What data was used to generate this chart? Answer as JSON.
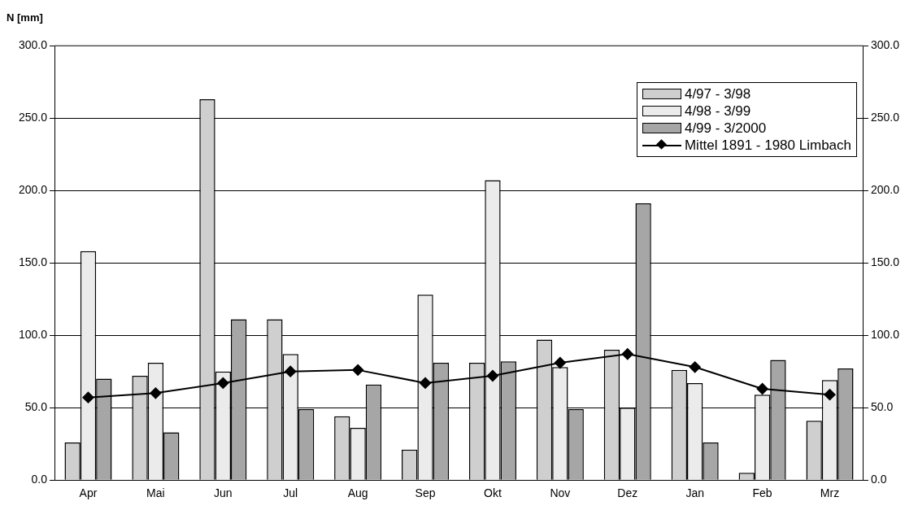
{
  "chart_data": {
    "type": "bar",
    "ylabel": "N [mm]",
    "categories": [
      "Apr",
      "Mai",
      "Jun",
      "Jul",
      "Aug",
      "Sep",
      "Okt",
      "Nov",
      "Dez",
      "Jan",
      "Feb",
      "Mrz"
    ],
    "series": [
      {
        "name": "4/97 - 3/98",
        "color": "#cfcfcf",
        "values": [
          26,
          72,
          263,
          111,
          44,
          21,
          81,
          97,
          90,
          76,
          5,
          41
        ]
      },
      {
        "name": "4/98 - 3/99",
        "color": "#ebebeb",
        "values": [
          158,
          81,
          75,
          87,
          36,
          128,
          207,
          78,
          50,
          67,
          59,
          69
        ]
      },
      {
        "name": "4/99 - 3/2000",
        "color": "#a6a6a6",
        "values": [
          70,
          33,
          111,
          49,
          66,
          81,
          82,
          49,
          191,
          26,
          83,
          77
        ]
      },
      {
        "name": "Mittel 1891 - 1980 Limbach",
        "type": "line",
        "color": "#000000",
        "marker": "diamond",
        "line_style": "solid",
        "values": [
          57,
          60,
          67,
          75,
          76,
          67,
          72,
          81,
          87,
          78,
          63,
          59
        ]
      }
    ],
    "ylim": [
      0,
      300
    ],
    "yticks": [
      {
        "value": 0,
        "label": "0.0"
      },
      {
        "value": 50,
        "label": "50.0"
      },
      {
        "value": 100,
        "label": "100.0"
      },
      {
        "value": 150,
        "label": "150.0"
      },
      {
        "value": 200,
        "label": "200.0"
      },
      {
        "value": 250,
        "label": "250.0"
      },
      {
        "value": 300,
        "label": "300.0"
      }
    ],
    "y2lim": [
      0,
      300
    ],
    "y2ticks": [
      {
        "value": 0,
        "label": "0.0"
      },
      {
        "value": 50,
        "label": "50.0"
      },
      {
        "value": 100,
        "label": "100.0"
      },
      {
        "value": 150,
        "label": "150.0"
      },
      {
        "value": 200,
        "label": "200.0"
      },
      {
        "value": 250,
        "label": "250.0"
      },
      {
        "value": 300,
        "label": "300.0"
      }
    ],
    "grid": "y",
    "legend": "top right"
  }
}
